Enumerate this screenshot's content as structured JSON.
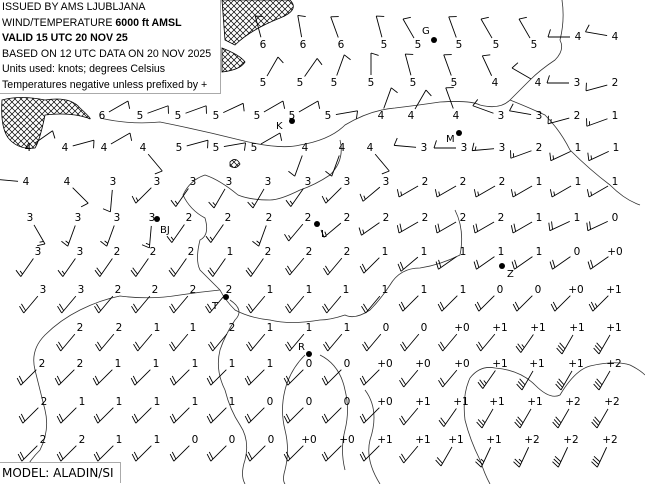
{
  "header": {
    "issued": "ISSUED BY AMS LJUBLJANA",
    "product_prefix": "WIND/TEMPERATURE ",
    "level": "6000 ft AMSL",
    "valid": "VALID 15 UTC 20 NOV 25",
    "based_on": "BASED ON 12 UTC DATA ON 20 NOV 2025",
    "units": "Units used: knots; degrees Celsius",
    "note": "Temperatures negative unless prefixed by +"
  },
  "footer": {
    "model": "MODEL: ALADIN/SI"
  },
  "cities": [
    {
      "label": "G"
    },
    {
      "label": "K"
    },
    {
      "label": "M"
    },
    {
      "label": "BJ"
    },
    {
      "label": "L"
    },
    {
      "label": "Z"
    },
    {
      "label": "T"
    },
    {
      "label": "R"
    }
  ],
  "stations": [
    {
      "t": [
        "6",
        "6",
        "6",
        "5",
        "5",
        "5",
        "5",
        "5",
        "4",
        "4"
      ],
      "d": [
        345,
        350,
        340,
        345,
        330,
        340,
        330,
        330,
        270,
        280
      ],
      "k": [
        10,
        10,
        10,
        10,
        10,
        10,
        10,
        10,
        10,
        10
      ]
    },
    {
      "t": [
        "5",
        "5",
        "5",
        "5",
        "5",
        "5",
        "4",
        "4",
        "3",
        "2"
      ],
      "d": [
        30,
        35,
        20,
        0,
        345,
        340,
        335,
        300,
        270,
        255
      ],
      "k": [
        10,
        10,
        10,
        10,
        10,
        10,
        10,
        10,
        10,
        10
      ]
    },
    {
      "t": [
        "6",
        "5",
        "5",
        "5",
        "5",
        "5",
        "5",
        "4",
        "4",
        "4",
        "3",
        "3",
        "2",
        "1"
      ],
      "d": [
        60,
        70,
        70,
        65,
        60,
        60,
        80,
        20,
        30,
        340,
        290,
        280,
        255,
        250
      ],
      "k": [
        10,
        10,
        10,
        10,
        10,
        10,
        10,
        10,
        10,
        10,
        10,
        10,
        15,
        15
      ]
    },
    {
      "t": [
        "4",
        "4",
        "4",
        "4",
        "5",
        "5",
        "5",
        "4",
        "4",
        "4",
        "3",
        "3",
        "3",
        "2",
        "1",
        "1"
      ],
      "d": [
        55,
        75,
        60,
        140,
        75,
        80,
        60,
        200,
        200,
        140,
        275,
        270,
        265,
        250,
        245,
        245
      ],
      "k": [
        10,
        10,
        10,
        10,
        10,
        10,
        10,
        10,
        10,
        10,
        10,
        10,
        15,
        15,
        15,
        15
      ]
    },
    {
      "t": [
        "4",
        "4",
        "3",
        "3",
        "3",
        "3",
        "3",
        "3",
        "3",
        "3",
        "2",
        "2",
        "2",
        "1",
        "1",
        "1"
      ],
      "d": [
        275,
        135,
        185,
        225,
        215,
        210,
        210,
        215,
        225,
        230,
        240,
        240,
        240,
        240,
        240,
        240
      ],
      "k": [
        10,
        10,
        10,
        15,
        15,
        15,
        15,
        15,
        15,
        15,
        15,
        15,
        15,
        15,
        15,
        15
      ]
    },
    {
      "t": [
        "3",
        "3",
        "3",
        "3",
        "2",
        "2",
        "2",
        "2",
        "2",
        "2",
        "2",
        "2",
        "2",
        "1",
        "1",
        "0"
      ],
      "d": [
        150,
        200,
        200,
        185,
        215,
        215,
        200,
        220,
        230,
        235,
        240,
        240,
        240,
        240,
        245,
        245
      ],
      "k": [
        15,
        15,
        15,
        15,
        15,
        15,
        15,
        15,
        15,
        15,
        20,
        20,
        20,
        20,
        20,
        20
      ]
    },
    {
      "t": [
        "3",
        "3",
        "2",
        "2",
        "2",
        "1",
        "2",
        "2",
        "2",
        "1",
        "1",
        "1",
        "1",
        "1",
        "0",
        "+0"
      ],
      "d": [
        215,
        215,
        215,
        215,
        215,
        215,
        215,
        220,
        220,
        225,
        230,
        235,
        235,
        235,
        235,
        235
      ],
      "k": [
        15,
        15,
        20,
        20,
        20,
        20,
        20,
        20,
        20,
        20,
        20,
        20,
        20,
        20,
        20,
        20
      ]
    },
    {
      "t": [
        "3",
        "3",
        "2",
        "2",
        "2",
        "2",
        "1",
        "1",
        "1",
        "1",
        "1",
        "1",
        "0",
        "0",
        "+0",
        "+1"
      ],
      "d": [
        220,
        220,
        220,
        220,
        220,
        220,
        220,
        220,
        220,
        220,
        225,
        225,
        225,
        225,
        225,
        225
      ],
      "k": [
        20,
        20,
        20,
        20,
        20,
        20,
        20,
        20,
        20,
        20,
        20,
        20,
        20,
        20,
        20,
        25
      ]
    },
    {
      "t": [
        "2",
        "2",
        "1",
        "1",
        "2",
        "1",
        "1",
        "1",
        "0",
        "0",
        "+0",
        "+1",
        "+1",
        "+1",
        "+1"
      ],
      "d": [
        220,
        220,
        220,
        220,
        220,
        220,
        220,
        220,
        220,
        220,
        220,
        220,
        215,
        210,
        210
      ],
      "k": [
        20,
        20,
        20,
        20,
        20,
        20,
        20,
        20,
        20,
        20,
        20,
        20,
        25,
        30,
        30
      ]
    },
    {
      "t": [
        "2",
        "2",
        "1",
        "1",
        "1",
        "1",
        "1",
        "0",
        "0",
        "+0",
        "+0",
        "+0",
        "+1",
        "+1",
        "+1",
        "+2"
      ],
      "d": [
        225,
        225,
        225,
        225,
        225,
        225,
        225,
        225,
        225,
        225,
        220,
        220,
        215,
        210,
        210,
        210
      ],
      "k": [
        20,
        20,
        20,
        20,
        20,
        20,
        20,
        20,
        20,
        20,
        20,
        20,
        25,
        30,
        30,
        30
      ]
    },
    {
      "t": [
        "2",
        "1",
        "1",
        "1",
        "1",
        "1",
        "0",
        "0",
        "0",
        "+0",
        "+1",
        "+1",
        "+1",
        "+1",
        "+2",
        "+2"
      ],
      "d": [
        225,
        225,
        225,
        225,
        225,
        225,
        225,
        225,
        225,
        225,
        220,
        215,
        210,
        210,
        210,
        210
      ],
      "k": [
        20,
        20,
        20,
        20,
        20,
        20,
        20,
        20,
        20,
        20,
        20,
        20,
        25,
        30,
        30,
        30
      ]
    },
    {
      "t": [
        "2",
        "2",
        "1",
        "1",
        "0",
        "0",
        "0",
        "+0",
        "+0",
        "+1",
        "+1",
        "+1",
        "+1",
        "+2",
        "+2",
        "+2"
      ],
      "d": [
        225,
        225,
        225,
        225,
        225,
        225,
        225,
        225,
        225,
        225,
        220,
        210,
        205,
        205,
        205,
        205
      ],
      "k": [
        20,
        20,
        20,
        20,
        20,
        20,
        20,
        20,
        20,
        20,
        20,
        20,
        25,
        25,
        30,
        30
      ]
    }
  ]
}
